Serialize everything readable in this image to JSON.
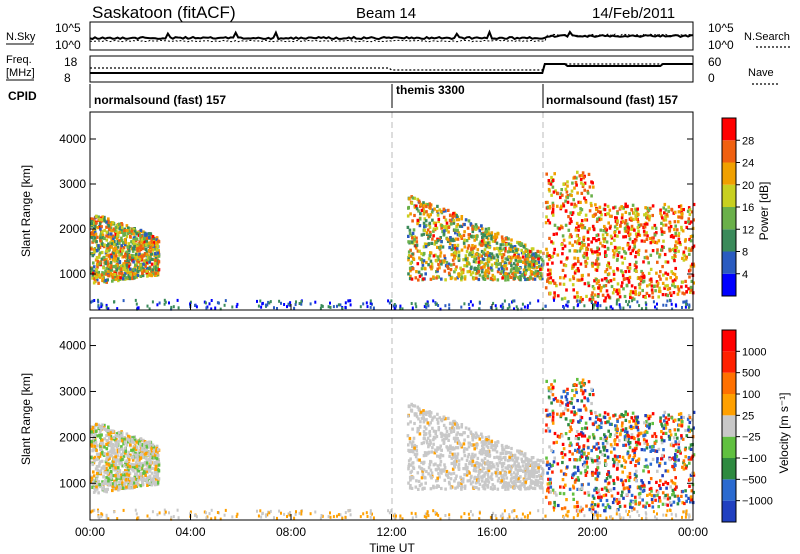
{
  "header": {
    "title": "Saskatoon (fitACF)",
    "beam": "Beam 14",
    "date": "14/Feb/2011"
  },
  "nsky_panel": {
    "left_label": "N.Sky",
    "left_ticks": [
      "10^5",
      "10^0"
    ],
    "right_ticks": [
      "10^5",
      "10^0"
    ],
    "right_label": "N.Search"
  },
  "freq_panel": {
    "left_label_1": "Freq.",
    "left_label_2": "[MHz]",
    "left_ticks": [
      "18",
      "8"
    ],
    "right_ticks": [
      "60",
      "0"
    ],
    "right_label": "Nave"
  },
  "cpid": {
    "label": "CPID",
    "segments": [
      {
        "text": "normalsound (fast) 157",
        "start": 0
      },
      {
        "text": "themis 3300",
        "start": 12
      },
      {
        "text": "normalsound (fast) 157",
        "start": 18
      }
    ]
  },
  "chart_data": [
    {
      "type": "heatmap",
      "title": "Power",
      "xlabel": "",
      "ylabel": "Slant Range [km]",
      "xlim": [
        0,
        24
      ],
      "ylim": [
        200,
        4600
      ],
      "yticks": [
        "1000",
        "2000",
        "3000",
        "4000"
      ],
      "colorbar_label": "Power [dB]",
      "colorbar_ticks": [
        "28",
        "24",
        "20",
        "16",
        "12",
        "8",
        "4"
      ],
      "colors": [
        "#0000ff",
        "#2a5bc0",
        "#3a8a5a",
        "#6ab04a",
        "#c8d020",
        "#f0a000",
        "#f06010",
        "#ff0000"
      ]
    },
    {
      "type": "heatmap",
      "title": "Velocity",
      "xlabel": "Time UT",
      "ylabel": "Slant Range [km]",
      "xlim": [
        0,
        24
      ],
      "ylim": [
        200,
        4600
      ],
      "yticks": [
        "1000",
        "2000",
        "3000",
        "4000"
      ],
      "xticks": [
        "00:00",
        "04:00",
        "08:00",
        "12:00",
        "16:00",
        "20:00",
        "00:00"
      ],
      "colorbar_label": "Velocity [m s⁻¹]",
      "colorbar_ticks": [
        "1000",
        "500",
        "100",
        "25",
        "−25",
        "−100",
        "−500",
        "−1000"
      ],
      "colors": [
        "#2040c0",
        "#2a6ad0",
        "#2e8a40",
        "#60c040",
        "#c8c8c8",
        "#ffa000",
        "#ff7000",
        "#ff2000",
        "#ff0000"
      ]
    }
  ]
}
